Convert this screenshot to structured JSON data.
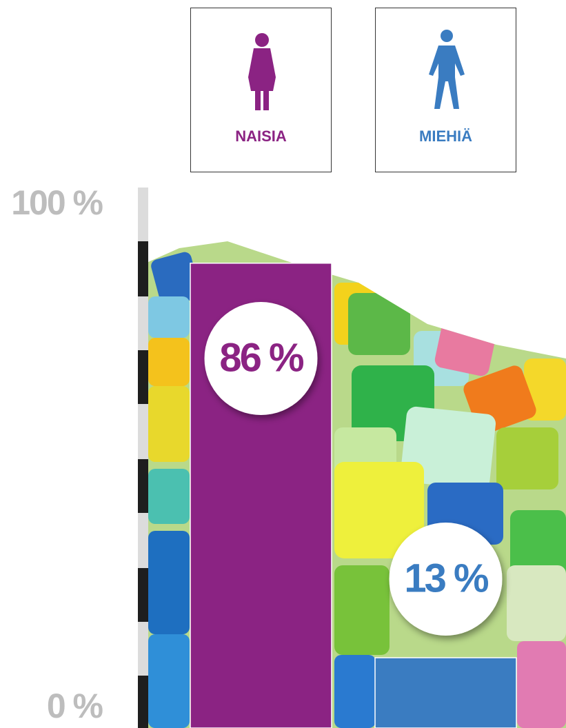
{
  "chart_data": {
    "type": "bar",
    "categories": [
      "NAISIA",
      "MIEHIÄ"
    ],
    "values": [
      86,
      13
    ],
    "value_labels": [
      "86 %",
      "13 %"
    ],
    "colors": [
      "#8b2383",
      "#3a7cc1"
    ],
    "ylim": [
      0,
      100
    ],
    "yticks": [
      {
        "value": 0,
        "label": "0 %"
      },
      {
        "value": 100,
        "label": "100 %"
      }
    ]
  }
}
